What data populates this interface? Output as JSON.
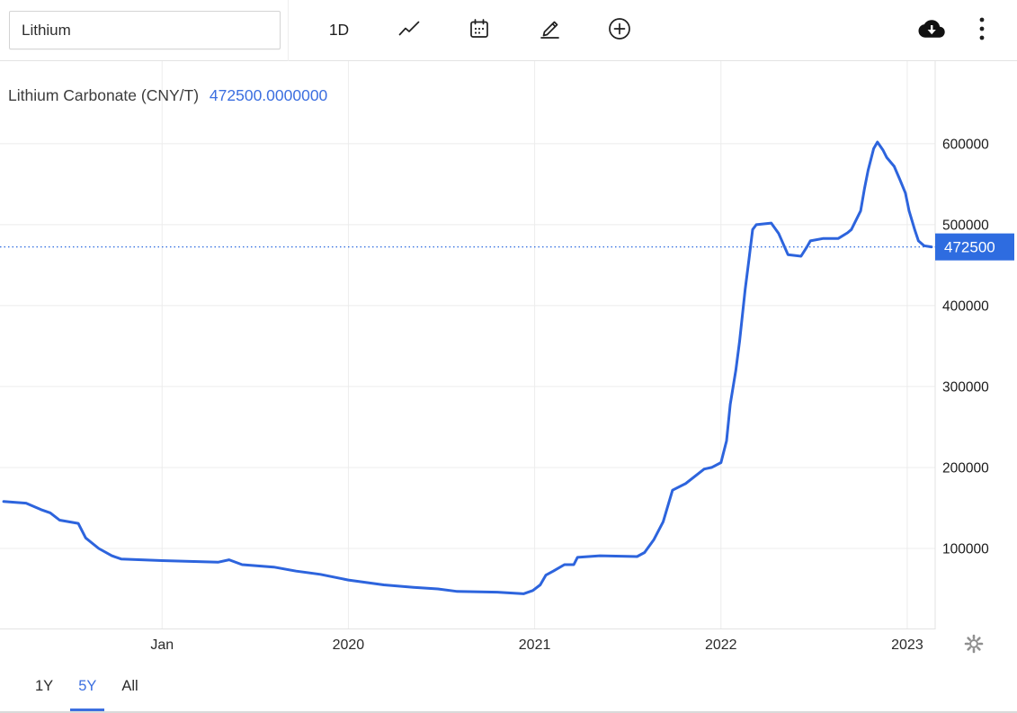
{
  "toolbar": {
    "search_value": "Lithium",
    "interval_label": "1D",
    "icons": [
      "trendline-chart-icon",
      "calendar-icon",
      "pencil-icon",
      "plus-circle-icon",
      "cloud-download-icon",
      "kebab-menu-icon",
      "gear-icon"
    ]
  },
  "chart": {
    "title": "Lithium Carbonate (CNY/T)",
    "value_label": "472500.0000000",
    "line_color": "#2d64dd",
    "accent_color": "#2e6ce0",
    "grid_color": "#ececec",
    "axis_text_color": "#1a1a1a"
  },
  "chart_data": {
    "type": "line",
    "title": "Lithium Carbonate (CNY/T)",
    "ylabel": "CNY/T",
    "current_value": 472500,
    "current_label": "472500",
    "x_domain": [
      2018.13,
      2023.15
    ],
    "y_domain": [
      0,
      702000
    ],
    "grid": true,
    "legend": false,
    "x_ticks": [
      {
        "x": 2019,
        "label": "Jan"
      },
      {
        "x": 2020,
        "label": "2020"
      },
      {
        "x": 2021,
        "label": "2021"
      },
      {
        "x": 2022,
        "label": "2022"
      },
      {
        "x": 2023,
        "label": "2023"
      }
    ],
    "y_ticks": [
      100000,
      200000,
      300000,
      400000,
      500000,
      600000
    ],
    "series": [
      {
        "name": "Lithium Carbonate",
        "points": [
          [
            2018.15,
            158000
          ],
          [
            2018.27,
            156000
          ],
          [
            2018.35,
            148000
          ],
          [
            2018.4,
            144000
          ],
          [
            2018.45,
            135000
          ],
          [
            2018.55,
            131000
          ],
          [
            2018.59,
            113000
          ],
          [
            2018.66,
            100000
          ],
          [
            2018.73,
            91000
          ],
          [
            2018.78,
            87000
          ],
          [
            2019.0,
            85000
          ],
          [
            2019.15,
            84000
          ],
          [
            2019.3,
            83000
          ],
          [
            2019.36,
            86000
          ],
          [
            2019.43,
            80000
          ],
          [
            2019.6,
            77000
          ],
          [
            2019.72,
            72000
          ],
          [
            2019.85,
            68000
          ],
          [
            2020.0,
            61000
          ],
          [
            2020.19,
            55000
          ],
          [
            2020.35,
            52000
          ],
          [
            2020.48,
            50000
          ],
          [
            2020.58,
            47000
          ],
          [
            2020.8,
            46000
          ],
          [
            2020.94,
            44000
          ],
          [
            2020.99,
            48000
          ],
          [
            2021.03,
            55000
          ],
          [
            2021.06,
            67000
          ],
          [
            2021.1,
            72000
          ],
          [
            2021.16,
            80000
          ],
          [
            2021.21,
            80000
          ],
          [
            2021.23,
            89000
          ],
          [
            2021.35,
            91000
          ],
          [
            2021.55,
            90000
          ],
          [
            2021.59,
            95000
          ],
          [
            2021.64,
            111000
          ],
          [
            2021.69,
            133000
          ],
          [
            2021.74,
            172000
          ],
          [
            2021.81,
            180000
          ],
          [
            2021.91,
            198000
          ],
          [
            2021.95,
            200000
          ],
          [
            2022.0,
            206000
          ],
          [
            2022.03,
            233000
          ],
          [
            2022.05,
            278000
          ],
          [
            2022.08,
            320000
          ],
          [
            2022.1,
            356000
          ],
          [
            2022.13,
            420000
          ],
          [
            2022.15,
            456000
          ],
          [
            2022.17,
            494000
          ],
          [
            2022.19,
            500000
          ],
          [
            2022.27,
            502000
          ],
          [
            2022.31,
            489000
          ],
          [
            2022.36,
            463000
          ],
          [
            2022.43,
            461000
          ],
          [
            2022.46,
            472000
          ],
          [
            2022.48,
            480000
          ],
          [
            2022.55,
            483000
          ],
          [
            2022.63,
            483000
          ],
          [
            2022.68,
            490000
          ],
          [
            2022.7,
            494000
          ],
          [
            2022.75,
            517000
          ],
          [
            2022.77,
            544000
          ],
          [
            2022.79,
            567000
          ],
          [
            2022.82,
            594000
          ],
          [
            2022.84,
            602000
          ],
          [
            2022.87,
            592000
          ],
          [
            2022.89,
            583000
          ],
          [
            2022.93,
            572000
          ],
          [
            2022.96,
            556000
          ],
          [
            2022.99,
            539000
          ],
          [
            2023.01,
            517000
          ],
          [
            2023.04,
            494000
          ],
          [
            2023.06,
            480000
          ],
          [
            2023.09,
            474000
          ],
          [
            2023.13,
            472500
          ]
        ]
      }
    ]
  },
  "range_selector": {
    "options": [
      {
        "label": "1Y",
        "active": false
      },
      {
        "label": "5Y",
        "active": true
      },
      {
        "label": "All",
        "active": false
      }
    ]
  }
}
